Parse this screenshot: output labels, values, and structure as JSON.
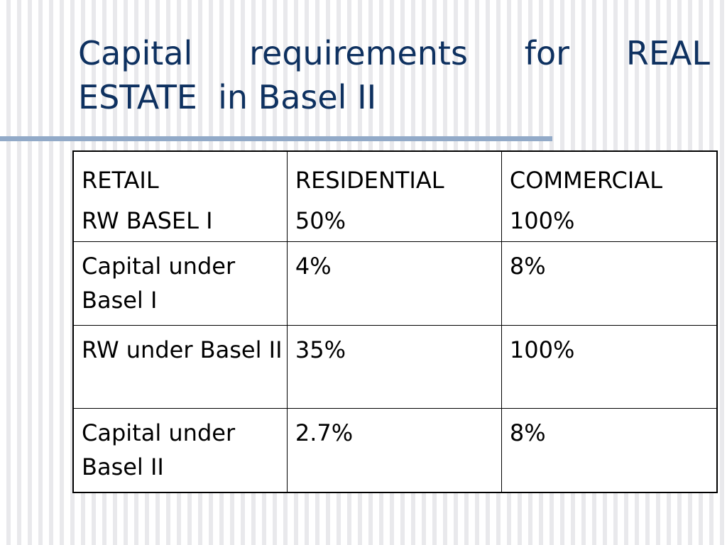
{
  "title": {
    "line1": "Capital requirements for REAL",
    "line2": "ESTATE  in Basel II"
  },
  "colors": {
    "title": "#0e3160",
    "rule": "#92aac8"
  },
  "table": {
    "header": {
      "label_line1": "RETAIL",
      "label_line2": "RW BASEL I",
      "residential_line1": "RESIDENTIAL",
      "residential_line2": "50%",
      "commercial_line1": "COMMERCIAL",
      "commercial_line2": "100%"
    },
    "rows": [
      {
        "label": "Capital under Basel I",
        "residential": "4%",
        "commercial": "8%"
      },
      {
        "label": "RW under Basel II",
        "residential": "35%",
        "commercial": "100%"
      },
      {
        "label": "Capital under Basel II",
        "residential": "2.7%",
        "commercial": "8%"
      }
    ]
  }
}
